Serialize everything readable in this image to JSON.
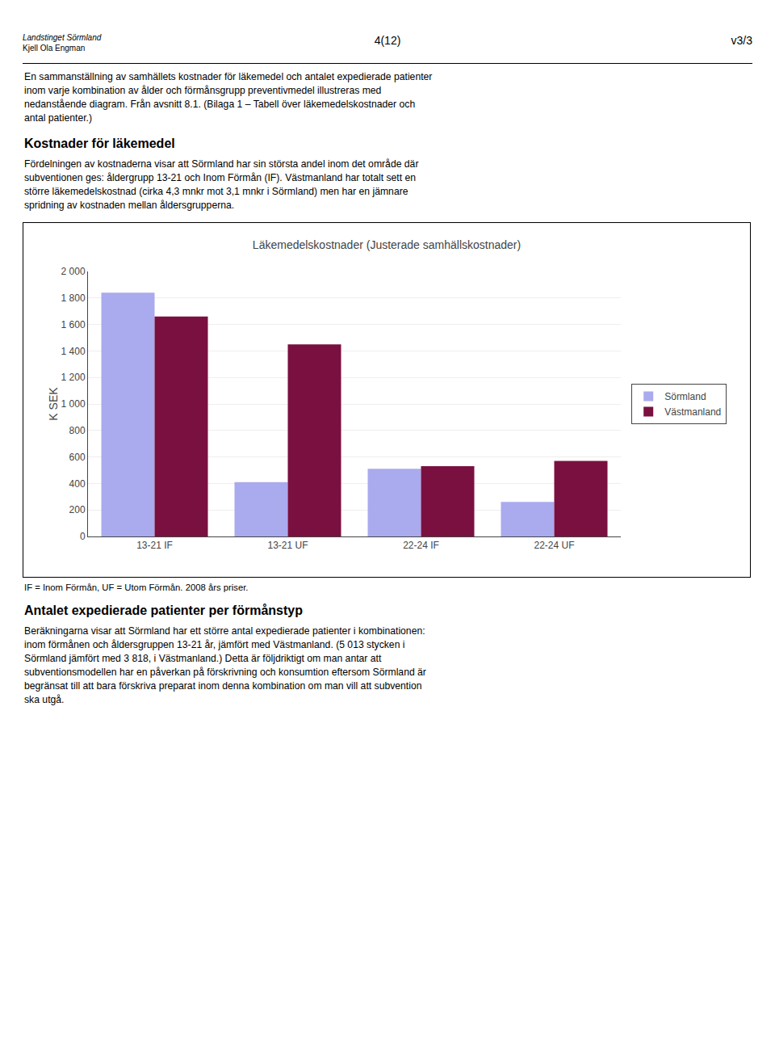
{
  "chart_data": {
    "type": "bar",
    "title": "Läkemedelskostnader (Justerade samhällskostnader)",
    "categories": [
      "13-21 IF",
      "13-21 UF",
      "22-24 IF",
      "22-24 UF"
    ],
    "series": [
      {
        "name": "Sörmland",
        "color": "#aaaaee",
        "values": [
          1840,
          410,
          510,
          260
        ]
      },
      {
        "name": "Västmanland",
        "color": "#7a1040",
        "values": [
          1660,
          1450,
          530,
          570
        ]
      }
    ],
    "ylabel": "K SEK",
    "ylim": [
      0,
      2000
    ],
    "yticks": [
      0,
      200,
      400,
      600,
      800,
      {
        "value": 1000,
        "label": "1 000"
      },
      {
        "value": 1200,
        "label": "1 200"
      },
      {
        "value": 1400,
        "label": "1 400"
      },
      {
        "value": 1600,
        "label": "1 600"
      },
      {
        "value": 1800,
        "label": "1 800"
      },
      {
        "value": 2000,
        "label": "2 000"
      }
    ],
    "grid": true,
    "legend": "right",
    "annotations": [
      "Landstinget Sörmland",
      "Kjell Ola Engman",
      "4(12)",
      "v3/3",
      "En sammanställning av samhällets kostnader för läkemedel och antalet expedierade patienter\ninom varje kombination av ålder och förmånsgrupp preventivmedel illustreras med\nnedanstående diagram. Från avsnitt 8.1. (Bilaga 1 – Tabell över läkemedelskostnader och\nantal patienter.)",
      "Kostnader för läkemedel",
      "Fördelningen av kostnaderna visar att Sörmland har sin största andel inom det område där\nsubventionen ges: åldergrupp 13-21 och Inom Förmån (IF). Västmanland har totalt sett en\nstörre läkemedelskostnad (cirka 4,3 mnkr mot 3,1 mnkr i Sörmland) men har en jämnare\nspridning av kostnaden mellan åldersgrupperna.",
      "IF = Inom Förmån, UF = Utom Förmån. 2008 års priser.",
      "Antalet expedierade patienter per förmånstyp",
      "Beräkningarna visar att Sörmland har ett större antal expedierade patienter i kombinationen:\ninom förmånen och åldersgruppen 13-21 år, jämfört med Västmanland. (5 013 stycken i\nSörmland jämfört med 3 818, i Västmanland.) Detta är följdriktigt om man antar att\nsubventionsmodellen har en påverkan på förskrivning och konsumtion eftersom Sörmland är\nbegränsat till att bara förskriva preparat inom denna kombination om man vill att subvention\nska utgå."
    ]
  }
}
